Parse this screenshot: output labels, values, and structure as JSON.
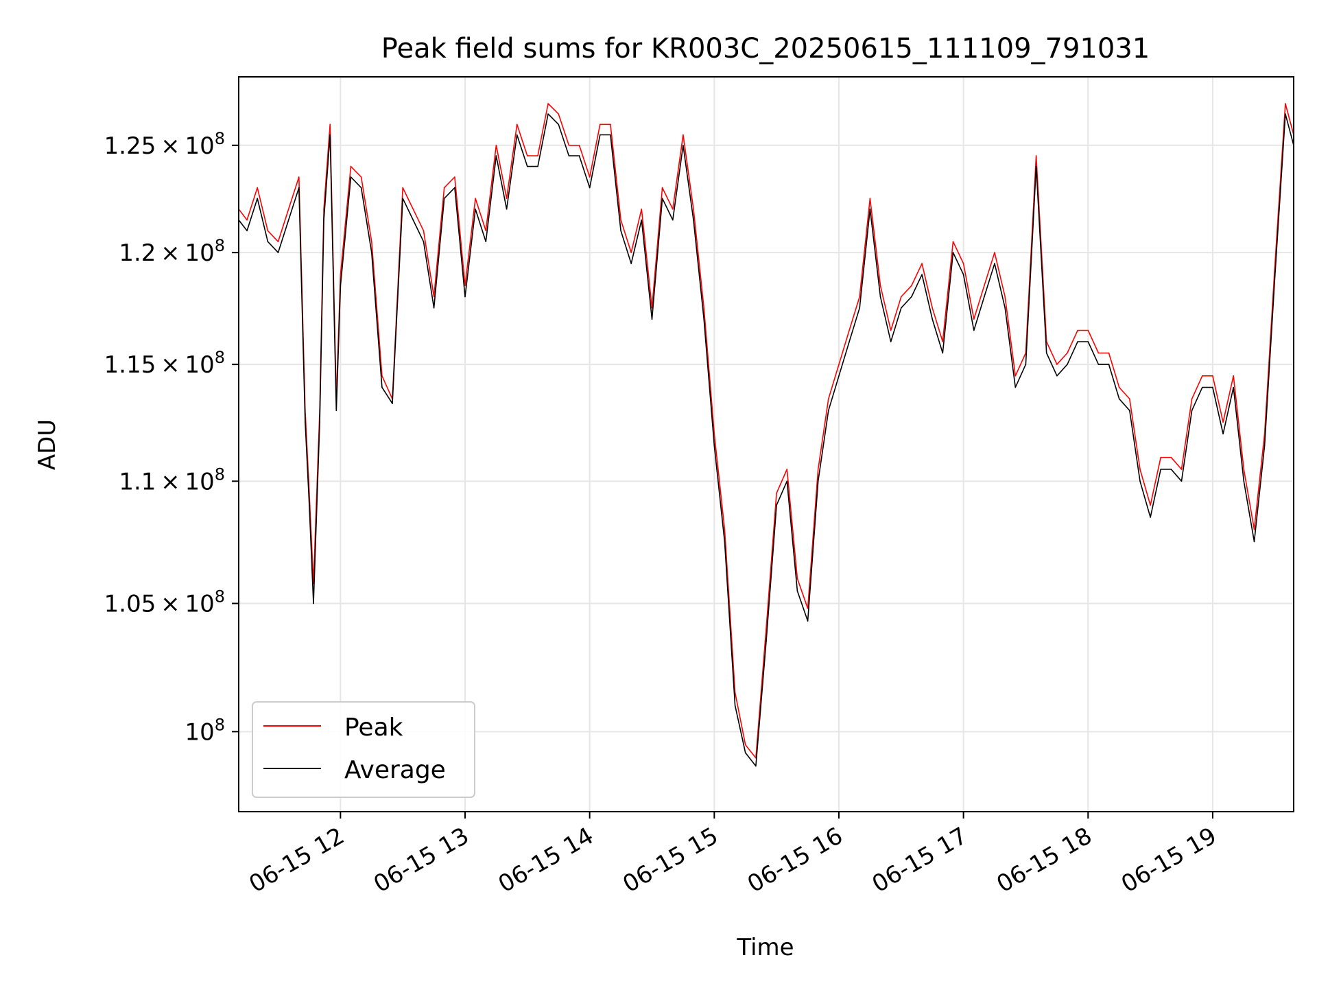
{
  "chart_data": {
    "type": "line",
    "title": "Peak field sums for KR003C_20250615_111109_791031",
    "xlabel": "Time",
    "ylabel": "ADU",
    "x_ticks": [
      "06-15 12",
      "06-15 13",
      "06-15 14",
      "06-15 15",
      "06-15 16",
      "06-15 17",
      "06-15 18",
      "06-15 19"
    ],
    "y_ticks": [
      {
        "value": 100000000,
        "mantissa": "",
        "exponent": "8",
        "label": "10^8"
      },
      {
        "value": 105000000,
        "mantissa": "1.05",
        "exponent": "8",
        "label": "1.05×10^8"
      },
      {
        "value": 110000000,
        "mantissa": "1.1",
        "exponent": "8",
        "label": "1.1×10^8"
      },
      {
        "value": 115000000,
        "mantissa": "1.15",
        "exponent": "8",
        "label": "1.15×10^8"
      },
      {
        "value": 120000000,
        "mantissa": "1.2",
        "exponent": "8",
        "label": "1.2×10^8"
      },
      {
        "value": 125000000,
        "mantissa": "1.25",
        "exponent": "8",
        "label": "1.25×10^8"
      }
    ],
    "xlim": [
      "2025-06-15 11:11",
      "2025-06-15 19:39"
    ],
    "ylim": [
      97000000,
      128300000
    ],
    "y_scale": "log",
    "grid": true,
    "legend": "lower-left",
    "series": [
      {
        "name": "Peak",
        "color": "#ff0000",
        "x": [
          "2025-06-15 11:11",
          "2025-06-15 11:15",
          "2025-06-15 11:20",
          "2025-06-15 11:25",
          "2025-06-15 11:30",
          "2025-06-15 11:35",
          "2025-06-15 11:40",
          "2025-06-15 11:43",
          "2025-06-15 11:45",
          "2025-06-15 11:47",
          "2025-06-15 11:50",
          "2025-06-15 11:52",
          "2025-06-15 11:55",
          "2025-06-15 11:58",
          "2025-06-15 12:00",
          "2025-06-15 12:05",
          "2025-06-15 12:10",
          "2025-06-15 12:15",
          "2025-06-15 12:20",
          "2025-06-15 12:25",
          "2025-06-15 12:30",
          "2025-06-15 12:35",
          "2025-06-15 12:40",
          "2025-06-15 12:45",
          "2025-06-15 12:50",
          "2025-06-15 12:55",
          "2025-06-15 13:00",
          "2025-06-15 13:05",
          "2025-06-15 13:10",
          "2025-06-15 13:15",
          "2025-06-15 13:20",
          "2025-06-15 13:25",
          "2025-06-15 13:30",
          "2025-06-15 13:35",
          "2025-06-15 13:40",
          "2025-06-15 13:45",
          "2025-06-15 13:50",
          "2025-06-15 13:55",
          "2025-06-15 14:00",
          "2025-06-15 14:05",
          "2025-06-15 14:10",
          "2025-06-15 14:15",
          "2025-06-15 14:20",
          "2025-06-15 14:25",
          "2025-06-15 14:30",
          "2025-06-15 14:35",
          "2025-06-15 14:40",
          "2025-06-15 14:45",
          "2025-06-15 14:50",
          "2025-06-15 14:55",
          "2025-06-15 15:00",
          "2025-06-15 15:05",
          "2025-06-15 15:10",
          "2025-06-15 15:15",
          "2025-06-15 15:20",
          "2025-06-15 15:25",
          "2025-06-15 15:30",
          "2025-06-15 15:35",
          "2025-06-15 15:40",
          "2025-06-15 15:45",
          "2025-06-15 15:50",
          "2025-06-15 15:55",
          "2025-06-15 16:00",
          "2025-06-15 16:05",
          "2025-06-15 16:10",
          "2025-06-15 16:15",
          "2025-06-15 16:20",
          "2025-06-15 16:25",
          "2025-06-15 16:30",
          "2025-06-15 16:35",
          "2025-06-15 16:40",
          "2025-06-15 16:45",
          "2025-06-15 16:50",
          "2025-06-15 16:55",
          "2025-06-15 17:00",
          "2025-06-15 17:05",
          "2025-06-15 17:10",
          "2025-06-15 17:15",
          "2025-06-15 17:20",
          "2025-06-15 17:25",
          "2025-06-15 17:30",
          "2025-06-15 17:35",
          "2025-06-15 17:40",
          "2025-06-15 17:45",
          "2025-06-15 17:50",
          "2025-06-15 17:55",
          "2025-06-15 18:00",
          "2025-06-15 18:05",
          "2025-06-15 18:10",
          "2025-06-15 18:15",
          "2025-06-15 18:20",
          "2025-06-15 18:25",
          "2025-06-15 18:30",
          "2025-06-15 18:35",
          "2025-06-15 18:40",
          "2025-06-15 18:45",
          "2025-06-15 18:50",
          "2025-06-15 18:55",
          "2025-06-15 19:00",
          "2025-06-15 19:05",
          "2025-06-15 19:10",
          "2025-06-15 19:15",
          "2025-06-15 19:20",
          "2025-06-15 19:25",
          "2025-06-15 19:30",
          "2025-06-15 19:35",
          "2025-06-15 19:39"
        ],
        "y": [
          122000000,
          121500000,
          123000000,
          121000000,
          120500000,
          122000000,
          123500000,
          113000000,
          109500000,
          105800000,
          113000000,
          122000000,
          126000000,
          113500000,
          119000000,
          124000000,
          123500000,
          120500000,
          114500000,
          113500000,
          123000000,
          122000000,
          121000000,
          118000000,
          123000000,
          123500000,
          118500000,
          122500000,
          121000000,
          125000000,
          122500000,
          126000000,
          124500000,
          124500000,
          127000000,
          126500000,
          125000000,
          125000000,
          123500000,
          126000000,
          126000000,
          121500000,
          120000000,
          122000000,
          117500000,
          123000000,
          122000000,
          125500000,
          122000000,
          117500000,
          112000000,
          108000000,
          101500000,
          99500000,
          99000000,
          104000000,
          109500000,
          110500000,
          106000000,
          104800000,
          110500000,
          113500000,
          115000000,
          116500000,
          118000000,
          122500000,
          118500000,
          116500000,
          118000000,
          118500000,
          119500000,
          117500000,
          116000000,
          120500000,
          119500000,
          117000000,
          118500000,
          120000000,
          118000000,
          114500000,
          115500000,
          124500000,
          116000000,
          115000000,
          115500000,
          116500000,
          116500000,
          115500000,
          115500000,
          114000000,
          113500000,
          110500000,
          109000000,
          111000000,
          111000000,
          110500000,
          113500000,
          114500000,
          114500000,
          112500000,
          114500000,
          110500000,
          108000000,
          112000000,
          119500000,
          127000000,
          125500000
        ]
      },
      {
        "name": "Average",
        "color": "#000000",
        "x": [
          "2025-06-15 11:11",
          "2025-06-15 11:15",
          "2025-06-15 11:20",
          "2025-06-15 11:25",
          "2025-06-15 11:30",
          "2025-06-15 11:35",
          "2025-06-15 11:40",
          "2025-06-15 11:43",
          "2025-06-15 11:45",
          "2025-06-15 11:47",
          "2025-06-15 11:50",
          "2025-06-15 11:52",
          "2025-06-15 11:55",
          "2025-06-15 11:58",
          "2025-06-15 12:00",
          "2025-06-15 12:05",
          "2025-06-15 12:10",
          "2025-06-15 12:15",
          "2025-06-15 12:20",
          "2025-06-15 12:25",
          "2025-06-15 12:30",
          "2025-06-15 12:35",
          "2025-06-15 12:40",
          "2025-06-15 12:45",
          "2025-06-15 12:50",
          "2025-06-15 12:55",
          "2025-06-15 13:00",
          "2025-06-15 13:05",
          "2025-06-15 13:10",
          "2025-06-15 13:15",
          "2025-06-15 13:20",
          "2025-06-15 13:25",
          "2025-06-15 13:30",
          "2025-06-15 13:35",
          "2025-06-15 13:40",
          "2025-06-15 13:45",
          "2025-06-15 13:50",
          "2025-06-15 13:55",
          "2025-06-15 14:00",
          "2025-06-15 14:05",
          "2025-06-15 14:10",
          "2025-06-15 14:15",
          "2025-06-15 14:20",
          "2025-06-15 14:25",
          "2025-06-15 14:30",
          "2025-06-15 14:35",
          "2025-06-15 14:40",
          "2025-06-15 14:45",
          "2025-06-15 14:50",
          "2025-06-15 14:55",
          "2025-06-15 15:00",
          "2025-06-15 15:05",
          "2025-06-15 15:10",
          "2025-06-15 15:15",
          "2025-06-15 15:20",
          "2025-06-15 15:25",
          "2025-06-15 15:30",
          "2025-06-15 15:35",
          "2025-06-15 15:40",
          "2025-06-15 15:45",
          "2025-06-15 15:50",
          "2025-06-15 15:55",
          "2025-06-15 16:00",
          "2025-06-15 16:05",
          "2025-06-15 16:10",
          "2025-06-15 16:15",
          "2025-06-15 16:20",
          "2025-06-15 16:25",
          "2025-06-15 16:30",
          "2025-06-15 16:35",
          "2025-06-15 16:40",
          "2025-06-15 16:45",
          "2025-06-15 16:50",
          "2025-06-15 16:55",
          "2025-06-15 17:00",
          "2025-06-15 17:05",
          "2025-06-15 17:10",
          "2025-06-15 17:15",
          "2025-06-15 17:20",
          "2025-06-15 17:25",
          "2025-06-15 17:30",
          "2025-06-15 17:35",
          "2025-06-15 17:40",
          "2025-06-15 17:45",
          "2025-06-15 17:50",
          "2025-06-15 17:55",
          "2025-06-15 18:00",
          "2025-06-15 18:05",
          "2025-06-15 18:10",
          "2025-06-15 18:15",
          "2025-06-15 18:20",
          "2025-06-15 18:25",
          "2025-06-15 18:30",
          "2025-06-15 18:35",
          "2025-06-15 18:40",
          "2025-06-15 18:45",
          "2025-06-15 18:50",
          "2025-06-15 18:55",
          "2025-06-15 19:00",
          "2025-06-15 19:05",
          "2025-06-15 19:10",
          "2025-06-15 19:15",
          "2025-06-15 19:20",
          "2025-06-15 19:25",
          "2025-06-15 19:30",
          "2025-06-15 19:35",
          "2025-06-15 19:39"
        ],
        "y": [
          121500000,
          121000000,
          122500000,
          120500000,
          120000000,
          121500000,
          123000000,
          112500000,
          109000000,
          105000000,
          112500000,
          121500000,
          125500000,
          113000000,
          118500000,
          123500000,
          123000000,
          120000000,
          114000000,
          113300000,
          122500000,
          121500000,
          120500000,
          117500000,
          122500000,
          123000000,
          118000000,
          122000000,
          120500000,
          124500000,
          122000000,
          125500000,
          124000000,
          124000000,
          126500000,
          126000000,
          124500000,
          124500000,
          123000000,
          125500000,
          125500000,
          121000000,
          119500000,
          121500000,
          117000000,
          122500000,
          121500000,
          125000000,
          121500000,
          117000000,
          111500000,
          107500000,
          101000000,
          99200000,
          98700000,
          103500000,
          109000000,
          110000000,
          105500000,
          104300000,
          110000000,
          113000000,
          114500000,
          116000000,
          117500000,
          122000000,
          118000000,
          116000000,
          117500000,
          118000000,
          119000000,
          117000000,
          115500000,
          120000000,
          119000000,
          116500000,
          118000000,
          119500000,
          117500000,
          114000000,
          115000000,
          124000000,
          115500000,
          114500000,
          115000000,
          116000000,
          116000000,
          115000000,
          115000000,
          113500000,
          113000000,
          110000000,
          108500000,
          110500000,
          110500000,
          110000000,
          113000000,
          114000000,
          114000000,
          112000000,
          114000000,
          110000000,
          107500000,
          111500000,
          119000000,
          126500000,
          125000000
        ]
      }
    ]
  }
}
